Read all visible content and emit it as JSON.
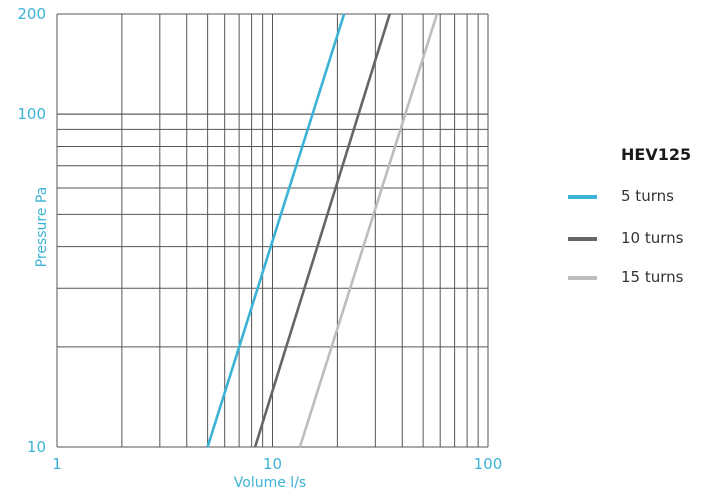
{
  "chart_data": {
    "type": "line",
    "x_scale": "log",
    "y_scale": "log",
    "xlim": [
      1,
      100
    ],
    "ylim": [
      10,
      200
    ],
    "xlabel": "Volume l/s",
    "ylabel": "Pressure Pa",
    "x_ticks": [
      "1",
      "10",
      "100"
    ],
    "y_ticks": [
      "10",
      "100",
      "200"
    ],
    "grid": true,
    "legend_title": "HEV125",
    "legend_position": "right",
    "series": [
      {
        "name": "5 turns",
        "color": "#3bb3d6",
        "x": [
          5.0,
          21.5
        ],
        "y": [
          10,
          200
        ]
      },
      {
        "name": "10 turns",
        "color": "#666666",
        "x": [
          8.3,
          35.0
        ],
        "y": [
          10,
          200
        ]
      },
      {
        "name": "15 turns",
        "color": "#bdbdbd",
        "x": [
          13.4,
          58.0
        ],
        "y": [
          10,
          200
        ]
      }
    ]
  }
}
